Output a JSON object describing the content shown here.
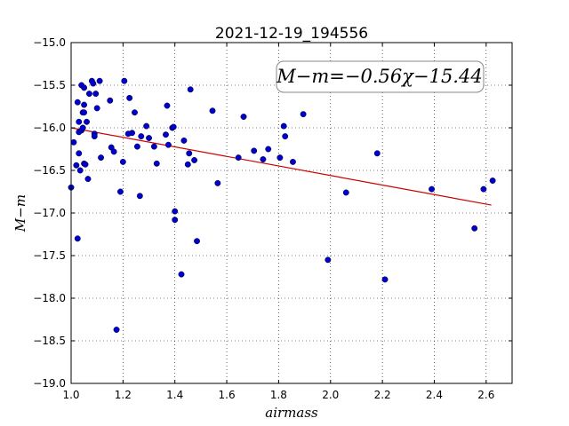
{
  "chart_data": {
    "type": "scatter",
    "title": "2021-12-19_194556",
    "xlabel": "airmass",
    "ylabel": "M−m",
    "xlim": [
      1.0,
      2.7
    ],
    "ylim": [
      -19.0,
      -15.0
    ],
    "y_inverted": false,
    "grid": true,
    "x_ticks": [
      1.0,
      1.2,
      1.4,
      1.6,
      1.8,
      2.0,
      2.2,
      2.4,
      2.6
    ],
    "x_tick_labels": [
      "1.0",
      "1.2",
      "1.4",
      "1.6",
      "1.8",
      "2.0",
      "2.2",
      "2.4",
      "2.6"
    ],
    "y_ticks": [
      -15.0,
      -15.5,
      -16.0,
      -16.5,
      -17.0,
      -17.5,
      -18.0,
      -18.5,
      -19.0
    ],
    "y_tick_labels": [
      "−15.0",
      "−15.5",
      "−16.0",
      "−16.5",
      "−17.0",
      "−17.5",
      "−18.0",
      "−18.5",
      "−19.0"
    ],
    "annotation": "M−m=−0.56χ−15.44",
    "annotation_position": "top-right",
    "fit": {
      "slope": -0.56,
      "intercept": -15.44,
      "x_range": [
        1.0,
        2.62
      ],
      "color": "#cc0000"
    },
    "point_color": "#0000cc",
    "points": [
      [
        1.0,
        -16.7
      ],
      [
        1.01,
        -16.17
      ],
      [
        1.02,
        -16.44
      ],
      [
        1.025,
        -17.3
      ],
      [
        1.025,
        -15.7
      ],
      [
        1.03,
        -16.3
      ],
      [
        1.03,
        -15.93
      ],
      [
        1.03,
        -16.05
      ],
      [
        1.035,
        -16.5
      ],
      [
        1.04,
        -15.5
      ],
      [
        1.04,
        -16.03
      ],
      [
        1.045,
        -15.82
      ],
      [
        1.045,
        -16.0
      ],
      [
        1.05,
        -15.53
      ],
      [
        1.05,
        -15.73
      ],
      [
        1.05,
        -15.82
      ],
      [
        1.05,
        -16.42
      ],
      [
        1.055,
        -16.43
      ],
      [
        1.06,
        -15.93
      ],
      [
        1.065,
        -16.6
      ],
      [
        1.07,
        -15.6
      ],
      [
        1.08,
        -15.45
      ],
      [
        1.085,
        -15.48
      ],
      [
        1.09,
        -16.07
      ],
      [
        1.09,
        -16.1
      ],
      [
        1.095,
        -15.6
      ],
      [
        1.1,
        -15.77
      ],
      [
        1.11,
        -15.45
      ],
      [
        1.115,
        -16.35
      ],
      [
        1.15,
        -15.68
      ],
      [
        1.155,
        -16.23
      ],
      [
        1.165,
        -16.28
      ],
      [
        1.175,
        -18.37
      ],
      [
        1.19,
        -16.75
      ],
      [
        1.2,
        -16.4
      ],
      [
        1.205,
        -15.45
      ],
      [
        1.22,
        -16.07
      ],
      [
        1.225,
        -15.65
      ],
      [
        1.235,
        -16.06
      ],
      [
        1.245,
        -15.82
      ],
      [
        1.255,
        -16.22
      ],
      [
        1.265,
        -16.8
      ],
      [
        1.27,
        -16.1
      ],
      [
        1.29,
        -15.98
      ],
      [
        1.3,
        -16.12
      ],
      [
        1.32,
        -16.22
      ],
      [
        1.33,
        -16.42
      ],
      [
        1.365,
        -16.08
      ],
      [
        1.37,
        -15.74
      ],
      [
        1.375,
        -16.2
      ],
      [
        1.39,
        -16.0
      ],
      [
        1.395,
        -15.99
      ],
      [
        1.4,
        -16.98
      ],
      [
        1.4,
        -17.08
      ],
      [
        1.425,
        -17.72
      ],
      [
        1.435,
        -16.15
      ],
      [
        1.45,
        -16.43
      ],
      [
        1.455,
        -16.3
      ],
      [
        1.46,
        -15.55
      ],
      [
        1.475,
        -16.38
      ],
      [
        1.485,
        -17.33
      ],
      [
        1.545,
        -15.8
      ],
      [
        1.565,
        -16.65
      ],
      [
        1.645,
        -16.35
      ],
      [
        1.665,
        -15.87
      ],
      [
        1.705,
        -16.27
      ],
      [
        1.74,
        -16.37
      ],
      [
        1.76,
        -16.25
      ],
      [
        1.805,
        -16.35
      ],
      [
        1.82,
        -15.98
      ],
      [
        1.825,
        -16.1
      ],
      [
        1.855,
        -16.4
      ],
      [
        1.895,
        -15.84
      ],
      [
        1.99,
        -17.55
      ],
      [
        2.06,
        -16.76
      ],
      [
        2.18,
        -16.3
      ],
      [
        2.21,
        -17.78
      ],
      [
        2.39,
        -16.72
      ],
      [
        2.555,
        -17.18
      ],
      [
        2.59,
        -16.72
      ],
      [
        2.625,
        -16.62
      ]
    ]
  }
}
